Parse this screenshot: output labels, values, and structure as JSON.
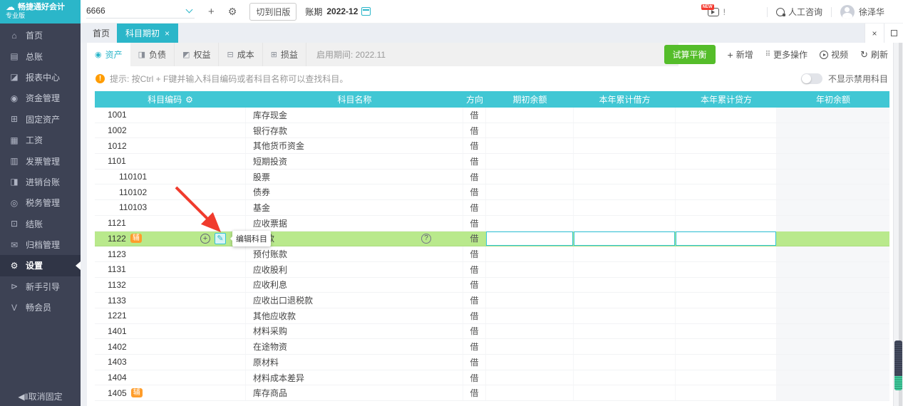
{
  "colors": {
    "accent": "#2bb6c9",
    "table_header": "#41c7d4",
    "highlight_row": "#b9e98c",
    "primary_button": "#55bd2a",
    "badge": "#ff9d2b",
    "arrow": "#f03b2d",
    "sidebar_bg": "#3d4254"
  },
  "brand": {
    "title": "畅捷通好会计",
    "subtitle": "专业版",
    "logo_icon": "cloud-icon"
  },
  "topbar": {
    "account": "6666",
    "switch_old_label": "切到旧版",
    "period_label": "账期",
    "period_value": "2022-12",
    "alert_text": "!",
    "new_badge": "NEW",
    "support_label": "人工咨询",
    "username": "徐泽华"
  },
  "tabs": {
    "home": "首页",
    "active": "科目期初",
    "close": "×"
  },
  "window_controls": {
    "close": "×"
  },
  "sidebar": {
    "unpin_label": "取消固定",
    "unpin_glyph": "◀‖",
    "items": [
      {
        "id": "home",
        "label": "首页",
        "icon": "home-icon",
        "glyph": "⌂"
      },
      {
        "id": "ledger",
        "label": "总账",
        "icon": "ledger-icon",
        "glyph": "▤"
      },
      {
        "id": "reports",
        "label": "报表中心",
        "icon": "report-center-icon",
        "glyph": "◪"
      },
      {
        "id": "funds",
        "label": "资金管理",
        "icon": "funds-icon",
        "glyph": "◉"
      },
      {
        "id": "fixed-assets",
        "label": "固定资产",
        "icon": "fixed-assets-icon",
        "glyph": "⊞"
      },
      {
        "id": "payroll",
        "label": "工资",
        "icon": "payroll-icon",
        "glyph": "▦"
      },
      {
        "id": "invoice",
        "label": "发票管理",
        "icon": "invoice-icon",
        "glyph": "▥"
      },
      {
        "id": "trade-ledger",
        "label": "进销台账",
        "icon": "trade-ledger-icon",
        "glyph": "◨"
      },
      {
        "id": "tax",
        "label": "税务管理",
        "icon": "tax-icon",
        "glyph": "◎"
      },
      {
        "id": "closing",
        "label": "结账",
        "icon": "closing-icon",
        "glyph": "⊡"
      },
      {
        "id": "archive",
        "label": "归档管理",
        "icon": "archive-icon",
        "glyph": "✉"
      },
      {
        "id": "settings",
        "label": "设置",
        "icon": "settings-icon",
        "glyph": "⚙",
        "active": true
      },
      {
        "id": "guide",
        "label": "新手引导",
        "icon": "guide-icon",
        "glyph": "⊳"
      },
      {
        "id": "membership",
        "label": "畅会员",
        "icon": "membership-icon",
        "glyph": "V"
      }
    ]
  },
  "subtabs": {
    "enable_period": "启用期间: 2022.11",
    "items": [
      {
        "id": "assets",
        "label": "资产",
        "icon": "assets-icon",
        "glyph": "◉",
        "active": true
      },
      {
        "id": "liability",
        "label": "负债",
        "icon": "liability-icon",
        "glyph": "◨"
      },
      {
        "id": "equity",
        "label": "权益",
        "icon": "equity-icon",
        "glyph": "◩"
      },
      {
        "id": "cost",
        "label": "成本",
        "icon": "cost-icon",
        "glyph": "⊟"
      },
      {
        "id": "pnl",
        "label": "损益",
        "icon": "pnl-icon",
        "glyph": "⊞"
      }
    ]
  },
  "toolbar": {
    "trial_balance": "试算平衡",
    "add": "新增",
    "more": "更多操作",
    "video": "视频",
    "refresh": "刷新"
  },
  "tip": {
    "text": "提示: 按Ctrl + F键并输入科目编码或者科目名称可以查找科目。",
    "toggle_label": "不显示禁用科目",
    "toggle_on": false
  },
  "tooltip": {
    "text": "编辑科目"
  },
  "table": {
    "columns": [
      "科目编码",
      "科目名称",
      "方向",
      "期初余额",
      "本年累计借方",
      "本年累计贷方",
      "年初余额"
    ],
    "rows": [
      {
        "code": "1001",
        "name": "库存现金",
        "dir": "借"
      },
      {
        "code": "1002",
        "name": "银行存款",
        "dir": "借"
      },
      {
        "code": "1012",
        "name": "其他货币资金",
        "dir": "借"
      },
      {
        "code": "1101",
        "name": "短期投资",
        "dir": "借"
      },
      {
        "code": "110101",
        "name": "股票",
        "dir": "借",
        "indent": true
      },
      {
        "code": "110102",
        "name": "债券",
        "dir": "借",
        "indent": true
      },
      {
        "code": "110103",
        "name": "基金",
        "dir": "借",
        "indent": true
      },
      {
        "code": "1121",
        "name": "应收票据",
        "dir": "借"
      },
      {
        "code": "1122",
        "name": "款",
        "dir": "借",
        "badge": "辅",
        "highlight": true,
        "editing": true
      },
      {
        "code": "1123",
        "name": "预付账款",
        "dir": "借"
      },
      {
        "code": "1131",
        "name": "应收股利",
        "dir": "借"
      },
      {
        "code": "1132",
        "name": "应收利息",
        "dir": "借"
      },
      {
        "code": "1133",
        "name": "应收出口退税款",
        "dir": "借"
      },
      {
        "code": "1221",
        "name": "其他应收款",
        "dir": "借"
      },
      {
        "code": "1401",
        "name": "材料采购",
        "dir": "借"
      },
      {
        "code": "1402",
        "name": "在途物资",
        "dir": "借"
      },
      {
        "code": "1403",
        "name": "原材料",
        "dir": "借"
      },
      {
        "code": "1404",
        "name": "材料成本差异",
        "dir": "借"
      },
      {
        "code": "1405",
        "name": "库存商品",
        "dir": "借",
        "badge": "辅"
      }
    ]
  }
}
